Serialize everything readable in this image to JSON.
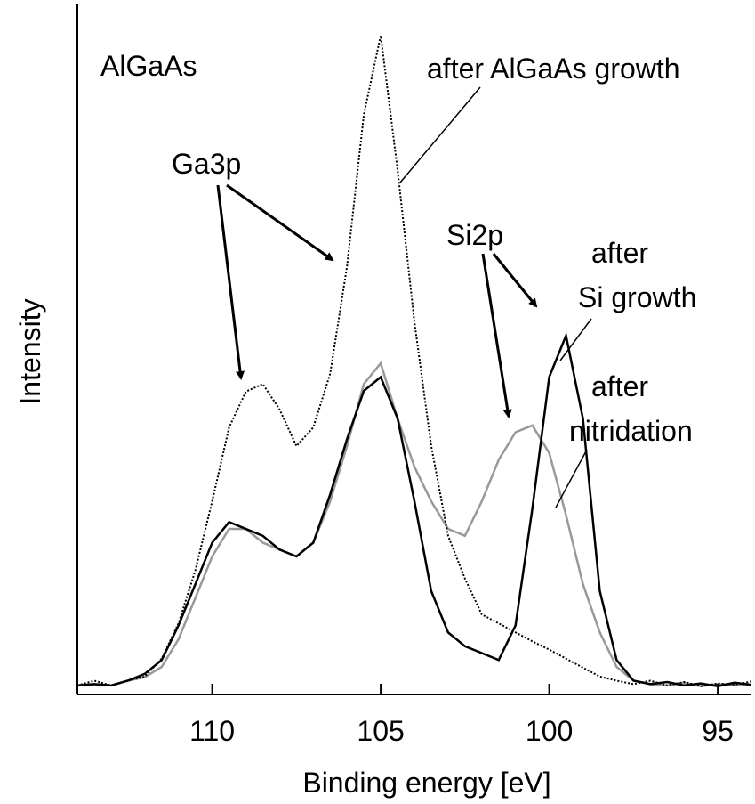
{
  "chart_data": {
    "type": "line",
    "xlabel": "Binding energy [eV]",
    "ylabel": "Intensity",
    "xlim": [
      114,
      94
    ],
    "ylim": [
      0,
      100
    ],
    "xticks": [
      110,
      105,
      100,
      95
    ],
    "x": [
      114,
      113.5,
      113,
      112.5,
      112,
      111.5,
      111,
      110.5,
      110,
      109.5,
      109,
      108.5,
      108,
      107.5,
      107,
      106.5,
      106,
      105.5,
      105,
      104.5,
      104,
      103.5,
      103,
      102.5,
      102,
      101.5,
      101,
      100.5,
      100,
      99.5,
      99,
      98.5,
      98,
      97.5,
      97,
      96.5,
      96,
      95.5,
      95,
      94.5,
      94
    ],
    "series": [
      {
        "color": "#000000",
        "dash": "2,2",
        "values": [
          1.3,
          2,
          1.3,
          2,
          2.6,
          5.2,
          10.3,
          18,
          28,
          38.7,
          43.9,
          45,
          41.3,
          36,
          38.7,
          46.5,
          62,
          84,
          95.5,
          76,
          54,
          36,
          23,
          16.8,
          11.6,
          10.3,
          9,
          7.7,
          6.5,
          5.2,
          3.9,
          2.6,
          2,
          1.5,
          2,
          1.3,
          1.8,
          1.2,
          1.6,
          1.4,
          1.9
        ]
      },
      {
        "color": "#000000",
        "values": [
          1.3,
          1.5,
          1.3,
          2,
          3,
          5,
          10,
          16,
          22,
          25,
          24,
          23,
          21,
          20,
          22,
          29,
          37,
          44,
          46,
          40,
          28,
          15,
          9,
          7,
          6,
          5,
          10,
          27,
          46,
          52,
          40,
          15,
          5,
          2,
          1.5,
          1.8,
          1.3,
          1.6,
          1.2,
          1.7,
          1.4
        ]
      },
      {
        "color": "#999999",
        "values": [
          1.3,
          1.5,
          1.3,
          2,
          2.5,
          4,
          8,
          14,
          20,
          24,
          24,
          22,
          21,
          20,
          22,
          28,
          36,
          45,
          48,
          40,
          33,
          28,
          24,
          23,
          28,
          34,
          38,
          39,
          35,
          26,
          16,
          9,
          4,
          2,
          1.5,
          1.3,
          1.7,
          1.2,
          1.5,
          1.4,
          1.3
        ]
      }
    ],
    "annotations": [
      "AlGaAs",
      "after AlGaAs growth",
      "Ga3p",
      "Si2p",
      "after",
      "Si growth",
      "after",
      "nitridation"
    ]
  }
}
